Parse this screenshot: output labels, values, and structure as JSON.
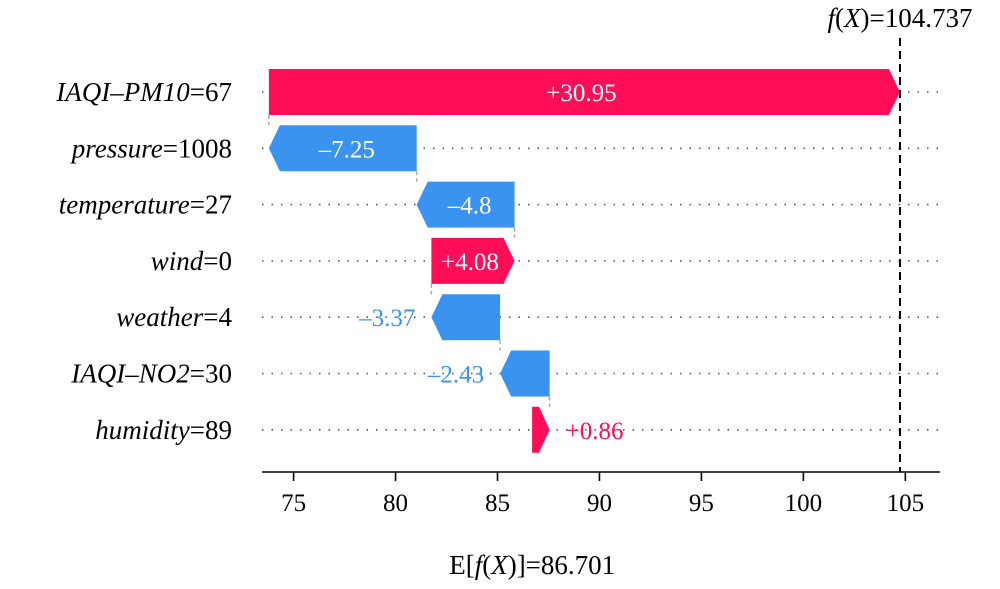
{
  "chart_data": {
    "type": "waterfall",
    "fx_label": "f(X)=104.737",
    "fx_value": 104.737,
    "ex_label": "E[f(X)]=86.701",
    "ex_value": 86.701,
    "xlim": [
      73.5,
      106.7
    ],
    "xticks": [
      {
        "value": 75,
        "label": "75"
      },
      {
        "value": 80,
        "label": "80"
      },
      {
        "value": 85,
        "label": "85"
      },
      {
        "value": 90,
        "label": "90"
      },
      {
        "value": 95,
        "label": "95"
      },
      {
        "value": 100,
        "label": "100"
      },
      {
        "value": 105,
        "label": "105"
      }
    ],
    "features": [
      {
        "name": "IAQI–PM10",
        "value": "=67",
        "contribution": 30.95,
        "label": "+30.95"
      },
      {
        "name": "pressure",
        "value": "=1008",
        "contribution": -7.25,
        "label": "–7.25"
      },
      {
        "name": "temperature",
        "value": "=27",
        "contribution": -4.8,
        "label": "–4.8"
      },
      {
        "name": "wind",
        "value": "=0",
        "contribution": 4.08,
        "label": "+4.08"
      },
      {
        "name": "weather",
        "value": "=4",
        "contribution": -3.37,
        "label": "–3.37"
      },
      {
        "name": "IAQI–NO2",
        "value": "=30",
        "contribution": -2.43,
        "label": "–2.43"
      },
      {
        "name": "humidity",
        "value": "=89",
        "contribution": 0.86,
        "label": "+0.86"
      }
    ],
    "colors": {
      "positive": "#ff0d57",
      "negative": "#3b93f0",
      "connector": "#aaaaaa",
      "grid": "#555555"
    }
  }
}
